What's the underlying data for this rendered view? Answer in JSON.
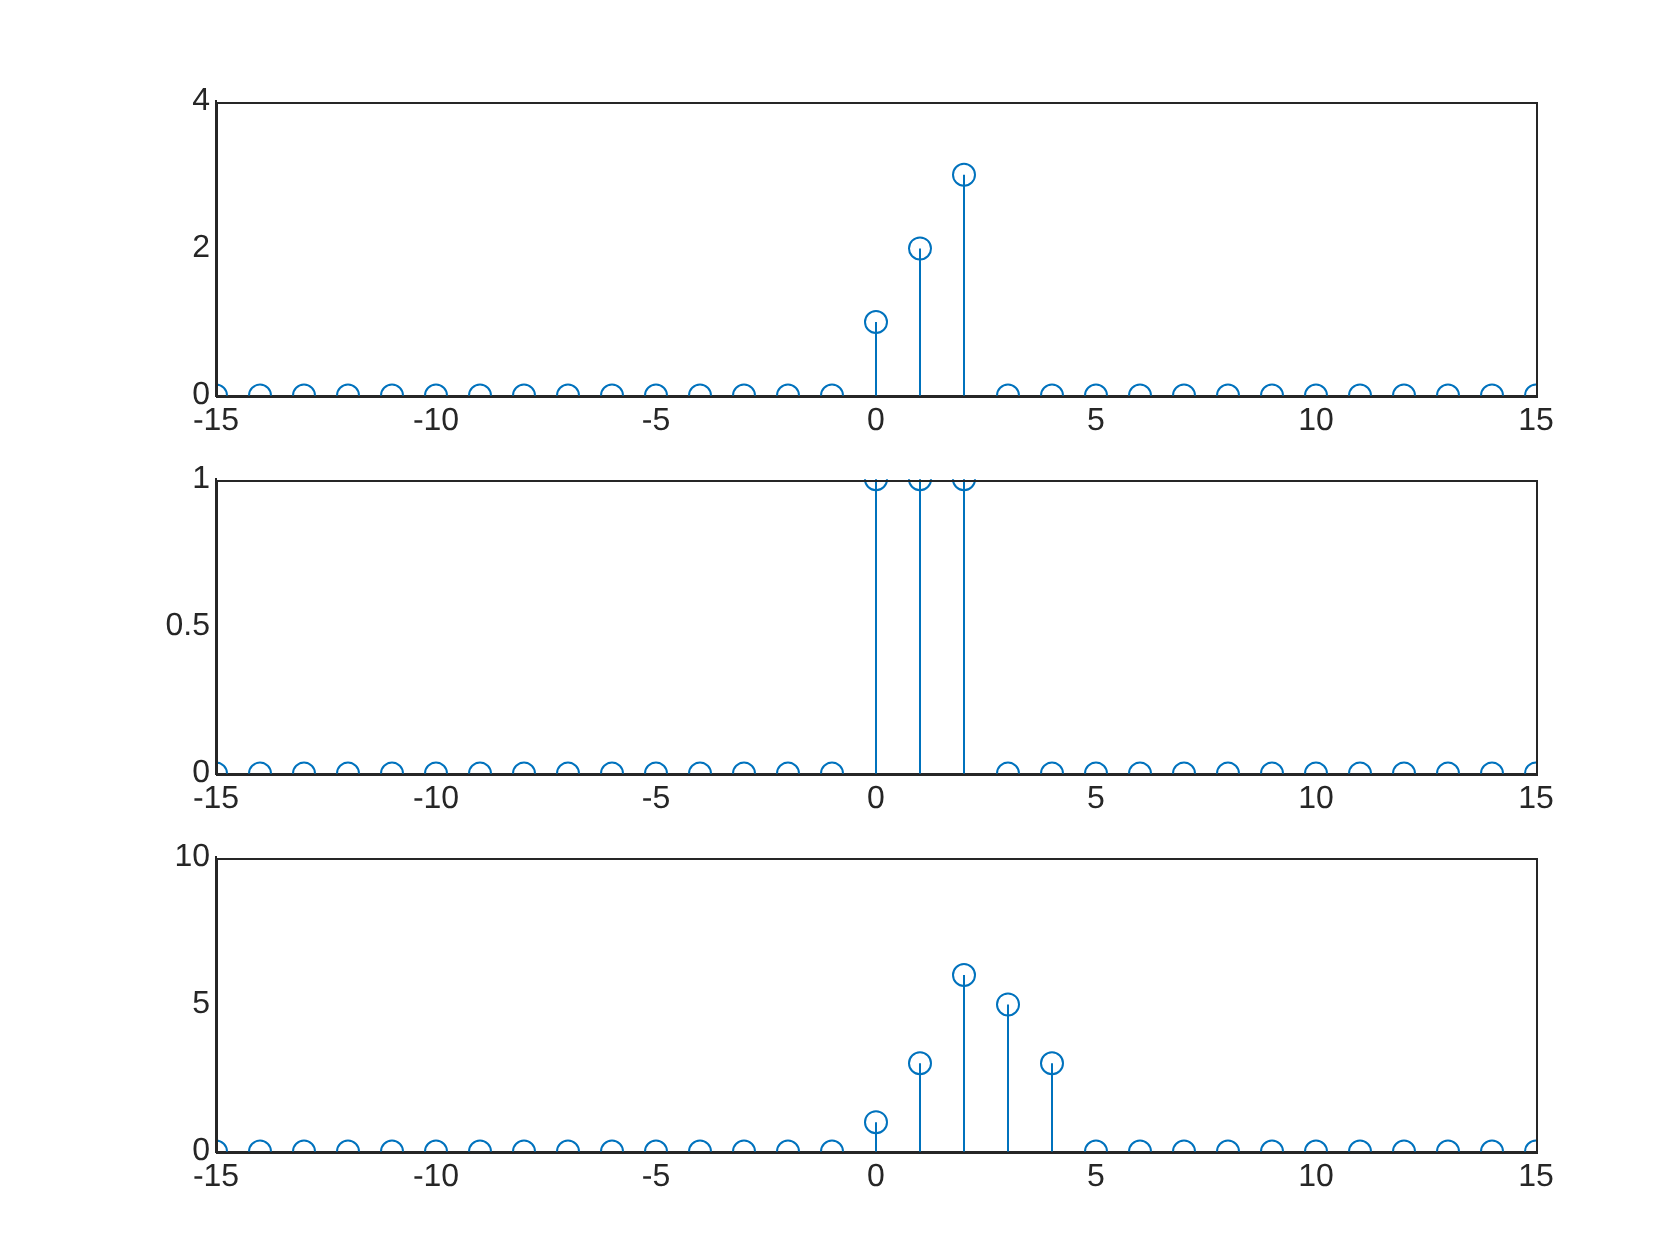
{
  "chart_data": [
    {
      "type": "lollipop",
      "x": [
        -15,
        -14,
        -13,
        -12,
        -11,
        -10,
        -9,
        -8,
        -7,
        -6,
        -5,
        -4,
        -3,
        -2,
        -1,
        0,
        1,
        2,
        3,
        4,
        5,
        6,
        7,
        8,
        9,
        10,
        11,
        12,
        13,
        14,
        15
      ],
      "xlim": [
        -15,
        15
      ],
      "xticks": [
        -15,
        -10,
        -5,
        0,
        5,
        10,
        15
      ],
      "ylim": [
        0,
        4
      ],
      "yticks": [
        0,
        2,
        4
      ],
      "marker": "circle",
      "series": [
        {
          "color": "#0072bd",
          "values": [
            0,
            0,
            0,
            0,
            0,
            0,
            0,
            0,
            0,
            0,
            0,
            0,
            0,
            0,
            0,
            1,
            2,
            3,
            0,
            0,
            0,
            0,
            0,
            0,
            0,
            0,
            0,
            0,
            0,
            0,
            0
          ]
        }
      ]
    },
    {
      "type": "lollipop",
      "x": [
        -15,
        -14,
        -13,
        -12,
        -11,
        -10,
        -9,
        -8,
        -7,
        -6,
        -5,
        -4,
        -3,
        -2,
        -1,
        0,
        1,
        2,
        3,
        4,
        5,
        6,
        7,
        8,
        9,
        10,
        11,
        12,
        13,
        14,
        15
      ],
      "xlim": [
        -15,
        15
      ],
      "xticks": [
        -15,
        -10,
        -5,
        0,
        5,
        10,
        15
      ],
      "ylim": [
        0,
        1
      ],
      "yticks": [
        0,
        0.5,
        1
      ],
      "marker": "circle",
      "series": [
        {
          "color": "#0072bd",
          "values": [
            0,
            0,
            0,
            0,
            0,
            0,
            0,
            0,
            0,
            0,
            0,
            0,
            0,
            0,
            0,
            1,
            1,
            1,
            0,
            0,
            0,
            0,
            0,
            0,
            0,
            0,
            0,
            0,
            0,
            0,
            0
          ]
        }
      ]
    },
    {
      "type": "lollipop",
      "x": [
        -15,
        -14,
        -13,
        -12,
        -11,
        -10,
        -9,
        -8,
        -7,
        -6,
        -5,
        -4,
        -3,
        -2,
        -1,
        0,
        1,
        2,
        3,
        4,
        5,
        6,
        7,
        8,
        9,
        10,
        11,
        12,
        13,
        14,
        15
      ],
      "xlim": [
        -15,
        15
      ],
      "xticks": [
        -15,
        -10,
        -5,
        0,
        5,
        10,
        15
      ],
      "ylim": [
        0,
        10
      ],
      "yticks": [
        0,
        5,
        10
      ],
      "marker": "circle",
      "series": [
        {
          "color": "#0072bd",
          "values": [
            0,
            0,
            0,
            0,
            0,
            0,
            0,
            0,
            0,
            0,
            0,
            0,
            0,
            0,
            0,
            1,
            3,
            6,
            5,
            3,
            0,
            0,
            0,
            0,
            0,
            0,
            0,
            0,
            0,
            0,
            0
          ]
        }
      ]
    }
  ]
}
